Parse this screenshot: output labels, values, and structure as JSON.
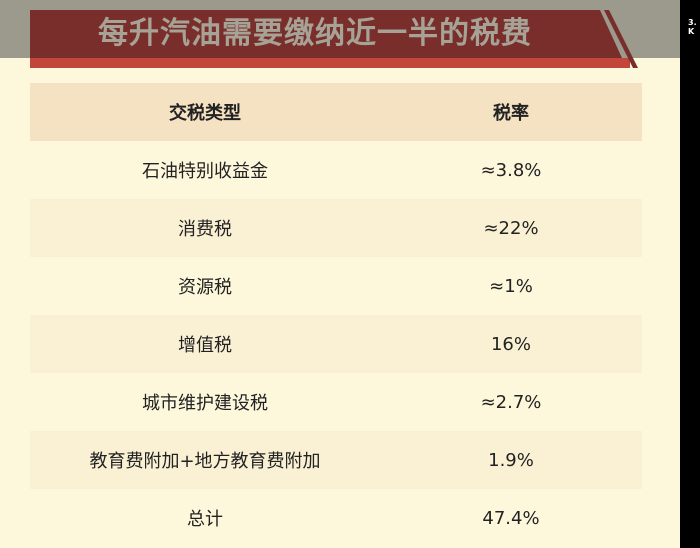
{
  "title": "每升汽油需要缴纳近一半的税费",
  "table": {
    "headers": [
      "交税类型",
      "税率"
    ],
    "rows": [
      [
        "石油特别收益金",
        "≈3.8%"
      ],
      [
        "消费税",
        "≈22%"
      ],
      [
        "资源税",
        "≈1%"
      ],
      [
        "增值税",
        "16%"
      ],
      [
        "城市维护建设税",
        "≈2.7%"
      ],
      [
        "教育费附加+地方教育费附加",
        "1.9%"
      ],
      [
        "总计",
        "47.4%"
      ]
    ]
  },
  "side_text": [
    "3.",
    "K"
  ],
  "colors": {
    "banner": "#7a2e2b",
    "stripe": "#c3463a",
    "header_bg": "#f4e2c2",
    "slide_bg": "#fdf8dc"
  }
}
